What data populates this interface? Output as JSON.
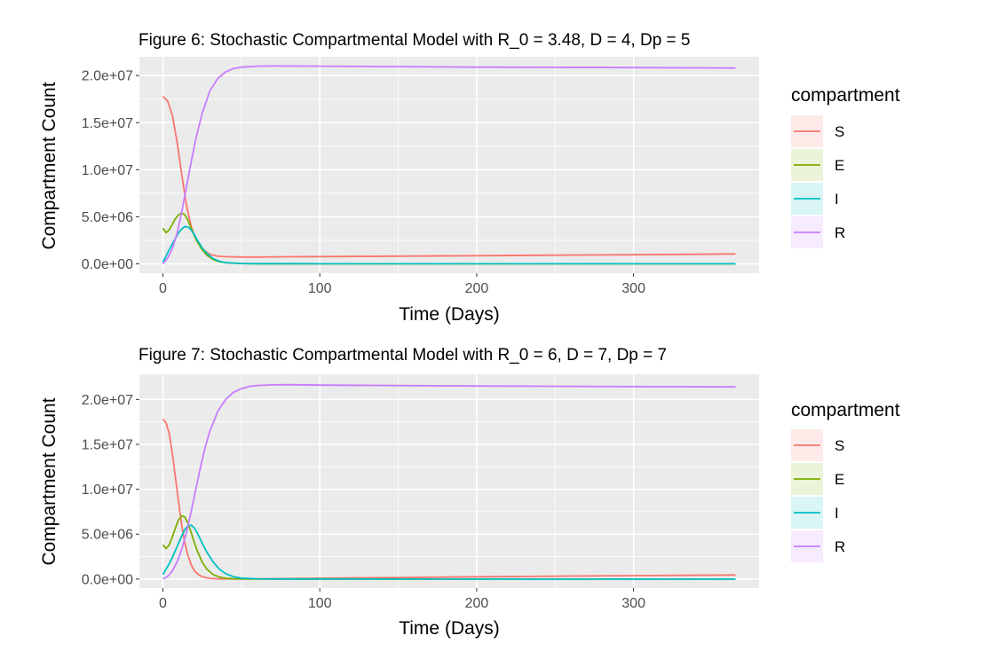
{
  "chart_data": [
    {
      "type": "line",
      "title": "Figure 6: Stochastic Compartmental Model with R_0 = 3.48, D = 4, Dp = 5",
      "xlabel": "Time (Days)",
      "ylabel": "Compartment Count",
      "xlim": [
        -15,
        380
      ],
      "ylim": [
        -1000000,
        22000000
      ],
      "x_ticks": [
        0,
        100,
        200,
        300
      ],
      "x_tick_labels": [
        "0",
        "100",
        "200",
        "300"
      ],
      "y_ticks": [
        0,
        5000000,
        10000000,
        15000000,
        20000000
      ],
      "y_tick_labels": [
        "0.0e+00",
        "5.0e+06",
        "1.0e+07",
        "1.5e+07",
        "2.0e+07"
      ],
      "legend_title": "compartment",
      "legend_position": "right",
      "series": [
        {
          "name": "S",
          "color": "#F8766D",
          "x": [
            0,
            3,
            6,
            9,
            12,
            15,
            18,
            21,
            25,
            30,
            35,
            40,
            50,
            60,
            80,
            100,
            150,
            200,
            250,
            300,
            365
          ],
          "y": [
            17800000,
            17300000,
            15800000,
            13000000,
            9500000,
            6200000,
            4000000,
            2600000,
            1600000,
            1000000,
            800000,
            750000,
            720000,
            720000,
            740000,
            760000,
            810000,
            860000,
            910000,
            960000,
            1050000
          ]
        },
        {
          "name": "E",
          "color": "#7CAE00",
          "x": [
            0,
            2,
            4,
            6,
            8,
            10,
            12,
            14,
            16,
            18,
            20,
            22,
            25,
            28,
            32,
            36,
            40,
            50,
            60,
            80,
            100,
            200,
            365
          ],
          "y": [
            3800000,
            3300000,
            3600000,
            4200000,
            4800000,
            5200000,
            5400000,
            5200000,
            4600000,
            3800000,
            3000000,
            2300000,
            1500000,
            900000,
            450000,
            220000,
            110000,
            30000,
            10000,
            5000,
            3000,
            2000,
            2000
          ]
        },
        {
          "name": "I",
          "color": "#00BFC4",
          "x": [
            0,
            2,
            4,
            6,
            8,
            10,
            12,
            14,
            16,
            18,
            20,
            22,
            25,
            28,
            32,
            36,
            40,
            50,
            60,
            80,
            100,
            200,
            365
          ],
          "y": [
            200000,
            800000,
            1500000,
            2100000,
            2700000,
            3300000,
            3700000,
            3950000,
            3900000,
            3600000,
            3100000,
            2500000,
            1700000,
            1100000,
            550000,
            260000,
            120000,
            30000,
            10000,
            5000,
            3000,
            2000,
            2000
          ]
        },
        {
          "name": "R",
          "color": "#C77CFF",
          "x": [
            0,
            3,
            6,
            9,
            12,
            15,
            18,
            21,
            25,
            30,
            35,
            40,
            45,
            50,
            60,
            70,
            100,
            150,
            200,
            250,
            300,
            365
          ],
          "y": [
            0,
            600000,
            1600000,
            3200000,
            5500000,
            8200000,
            10800000,
            13300000,
            16000000,
            18400000,
            19700000,
            20400000,
            20750000,
            20900000,
            21000000,
            21020000,
            21000000,
            20950000,
            20900000,
            20880000,
            20850000,
            20800000
          ]
        }
      ]
    },
    {
      "type": "line",
      "title": "Figure 7: Stochastic Compartmental Model with R_0 = 6, D = 7, Dp = 7",
      "xlabel": "Time (Days)",
      "ylabel": "Compartment Count",
      "xlim": [
        -15,
        380
      ],
      "ylim": [
        -1000000,
        22800000
      ],
      "x_ticks": [
        0,
        100,
        200,
        300
      ],
      "x_tick_labels": [
        "0",
        "100",
        "200",
        "300"
      ],
      "y_ticks": [
        0,
        5000000,
        10000000,
        15000000,
        20000000
      ],
      "y_tick_labels": [
        "0.0e+00",
        "5.0e+06",
        "1.0e+07",
        "1.5e+07",
        "2.0e+07"
      ],
      "legend_title": "compartment",
      "legend_position": "right",
      "series": [
        {
          "name": "S",
          "color": "#F8766D",
          "x": [
            0,
            2,
            4,
            6,
            8,
            10,
            12,
            14,
            16,
            18,
            20,
            23,
            26,
            30,
            35,
            40,
            50,
            60,
            80,
            100,
            150,
            200,
            250,
            300,
            365
          ],
          "y": [
            17800000,
            17400000,
            16200000,
            14000000,
            11300000,
            8500000,
            6000000,
            4000000,
            2600000,
            1600000,
            950000,
            450000,
            200000,
            80000,
            30000,
            15000,
            10000,
            20000,
            60000,
            100000,
            180000,
            250000,
            320000,
            380000,
            450000
          ]
        },
        {
          "name": "E",
          "color": "#7CAE00",
          "x": [
            0,
            2,
            4,
            6,
            8,
            10,
            12,
            14,
            16,
            18,
            20,
            22,
            25,
            28,
            32,
            36,
            40,
            45,
            50,
            60,
            80,
            100,
            200,
            365
          ],
          "y": [
            3800000,
            3400000,
            3800000,
            4700000,
            5700000,
            6600000,
            7050000,
            6900000,
            6200000,
            5200000,
            4100000,
            3100000,
            1900000,
            1100000,
            500000,
            220000,
            100000,
            40000,
            20000,
            8000,
            5000,
            3000,
            2000,
            2000
          ]
        },
        {
          "name": "I",
          "color": "#00BFC4",
          "x": [
            0,
            2,
            4,
            6,
            8,
            10,
            12,
            14,
            16,
            18,
            20,
            22,
            25,
            28,
            32,
            36,
            40,
            45,
            50,
            60,
            70,
            80,
            100,
            200,
            365
          ],
          "y": [
            500000,
            1100000,
            1700000,
            2400000,
            3200000,
            4000000,
            4800000,
            5500000,
            5950000,
            6000000,
            5700000,
            5100000,
            4000000,
            3000000,
            1900000,
            1100000,
            600000,
            260000,
            110000,
            30000,
            10000,
            5000,
            3000,
            2000,
            2000
          ]
        },
        {
          "name": "R",
          "color": "#C77CFF",
          "x": [
            0,
            3,
            6,
            9,
            12,
            15,
            18,
            21,
            24,
            27,
            30,
            35,
            40,
            45,
            50,
            55,
            60,
            70,
            80,
            100,
            150,
            200,
            250,
            300,
            365
          ],
          "y": [
            0,
            300000,
            900000,
            1900000,
            3300000,
            5200000,
            7500000,
            10000000,
            12500000,
            14700000,
            16500000,
            18700000,
            20000000,
            20800000,
            21200000,
            21450000,
            21550000,
            21620000,
            21640000,
            21600000,
            21550000,
            21500000,
            21470000,
            21430000,
            21400000
          ]
        }
      ]
    }
  ]
}
